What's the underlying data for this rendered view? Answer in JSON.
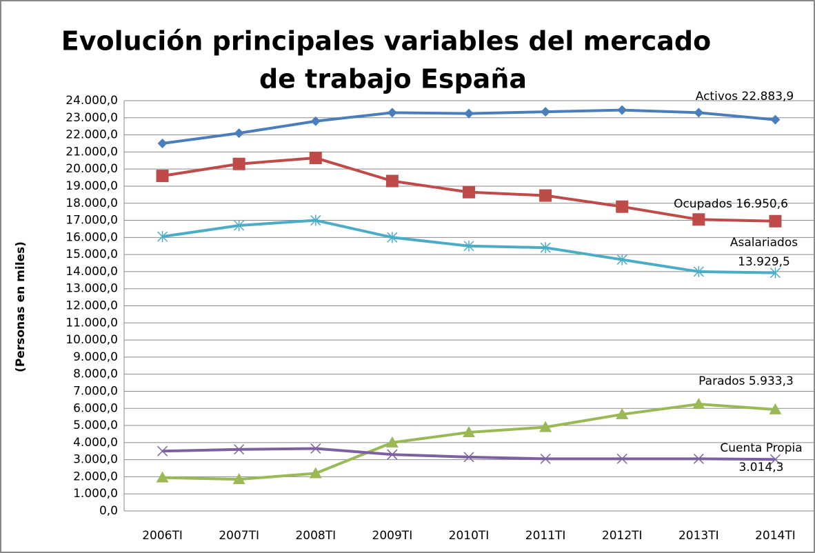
{
  "chart_data": {
    "type": "line",
    "title": [
      "Evolución principales variables del mercado",
      "de trabajo España"
    ],
    "y_label": "(Personas en miles)",
    "categories": [
      "2006TI",
      "2007TI",
      "2008TI",
      "2009TI",
      "2010TI",
      "2011TI",
      "2012TI",
      "2013TI",
      "2014TI"
    ],
    "series": [
      {
        "color": "#4a7ebb",
        "marker": "diamond",
        "values": [
          21500,
          22100,
          22800,
          23300,
          23250,
          23350,
          23450,
          23300,
          22883.9
        ]
      },
      {
        "color": "#be4b48",
        "marker": "square",
        "values": [
          19600,
          20300,
          20650,
          19300,
          18650,
          18450,
          17800,
          17050,
          16950.6
        ]
      },
      {
        "color": "#4bacc6",
        "marker": "star",
        "values": [
          16050,
          16700,
          17000,
          16000,
          15500,
          15400,
          14700,
          14000,
          13929.5
        ]
      },
      {
        "color": "#98b954",
        "marker": "triangle",
        "values": [
          1950,
          1850,
          2200,
          4000,
          4600,
          4900,
          5650,
          6250,
          5933.3
        ]
      },
      {
        "color": "#7d60a0",
        "marker": "x",
        "values": [
          3500,
          3600,
          3650,
          3300,
          3150,
          3050,
          3050,
          3050,
          3014.3
        ]
      }
    ],
    "annotations": [
      [
        "Activos 22.883,9"
      ],
      [
        "Ocupados 16.950,6"
      ],
      [
        "Asalariados",
        "13.929,5"
      ],
      [
        "Parados 5.933,3"
      ],
      [
        "Cuenta Propia",
        "3.014,3"
      ]
    ],
    "ylim": [
      0,
      24000
    ],
    "yticks": [
      {
        "value": 0,
        "label": "0,0"
      },
      {
        "value": 1000,
        "label": "1.000,0"
      },
      {
        "value": 2000,
        "label": "2.000,0"
      },
      {
        "value": 3000,
        "label": "3.000,0"
      },
      {
        "value": 4000,
        "label": "4.000,0"
      },
      {
        "value": 5000,
        "label": "5.000,0"
      },
      {
        "value": 6000,
        "label": "6.000,0"
      },
      {
        "value": 7000,
        "label": "7.000,0"
      },
      {
        "value": 8000,
        "label": "8.000,0"
      },
      {
        "value": 9000,
        "label": "9.000,0"
      },
      {
        "value": 10000,
        "label": "10.000,0"
      },
      {
        "value": 11000,
        "label": "11.000,0"
      },
      {
        "value": 12000,
        "label": "12.000,0"
      },
      {
        "value": 13000,
        "label": "13.000,0"
      },
      {
        "value": 14000,
        "label": "14.000,0"
      },
      {
        "value": 15000,
        "label": "15.000,0"
      },
      {
        "value": 16000,
        "label": "16.000,0"
      },
      {
        "value": 17000,
        "label": "17.000,0"
      },
      {
        "value": 18000,
        "label": "18.000,0"
      },
      {
        "value": 19000,
        "label": "19.000,0"
      },
      {
        "value": 20000,
        "label": "20.000,0"
      },
      {
        "value": 21000,
        "label": "21.000,0"
      },
      {
        "value": 22000,
        "label": "22.000,0"
      },
      {
        "value": 23000,
        "label": "23.000,0"
      },
      {
        "value": 24000,
        "label": "24.000,0"
      }
    ],
    "grid": true
  }
}
